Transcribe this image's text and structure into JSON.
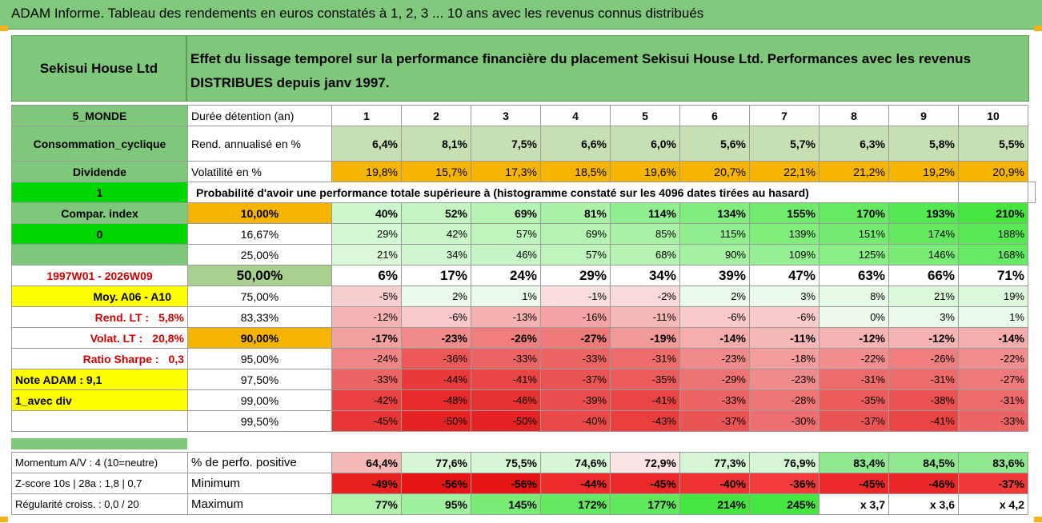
{
  "header": {
    "title": "ADAM Informe. Tableau des rendements en euros constatés à 1, 2, 3 ... 10 ans avec les revenus connus distribués",
    "company": "Sekisui House Ltd",
    "description_line1": "Effet du lissage temporel sur la performance financière du placement Sekisui House Ltd. Performances avec les revenus",
    "description_line2": "DISTRIBUES depuis janv 1997."
  },
  "left_labels": {
    "zone": "5_MONDE",
    "sector": "Consommation_cyclique",
    "dividend": "Dividende",
    "one": "1",
    "compar": "Compar. index",
    "zero": "0",
    "period": "1997W01 - 2026W09",
    "moy": "Moy. A06 - A10",
    "rend_lt_label": "Rend. LT :",
    "rend_lt_value": "5,8%",
    "volat_lt_label": "Volat. LT :",
    "volat_lt_value": "20,8%",
    "sharpe_label": "Ratio Sharpe :",
    "sharpe_value": "0,3",
    "note": "Note ADAM : 9,1",
    "avec_div": "1_avec div"
  },
  "top_rows": {
    "duree_label": "Durée détention (an)",
    "years": [
      "1",
      "2",
      "3",
      "4",
      "5",
      "6",
      "7",
      "8",
      "9",
      "10"
    ],
    "rend_label": "Rend. annualisé en %",
    "rend": [
      "6,4%",
      "8,1%",
      "7,5%",
      "6,6%",
      "6,0%",
      "5,6%",
      "5,7%",
      "6,3%",
      "5,8%",
      "5,5%"
    ],
    "vol_label": "Volatilité en %",
    "vol": [
      "19,8%",
      "15,7%",
      "17,3%",
      "18,5%",
      "19,6%",
      "20,7%",
      "22,1%",
      "21,2%",
      "19,2%",
      "20,9%"
    ],
    "proba_label": "Probabilité d'avoir une performance totale supérieure à (histogramme constaté sur les 4096 dates tirées au hasard)"
  },
  "quantiles": [
    {
      "q": "10,00%",
      "v": [
        "40%",
        "52%",
        "69%",
        "81%",
        "114%",
        "134%",
        "155%",
        "170%",
        "193%",
        "210%"
      ]
    },
    {
      "q": "16,67%",
      "v": [
        "29%",
        "42%",
        "57%",
        "69%",
        "85%",
        "115%",
        "139%",
        "151%",
        "174%",
        "188%"
      ]
    },
    {
      "q": "25,00%",
      "v": [
        "21%",
        "34%",
        "46%",
        "57%",
        "68%",
        "90%",
        "109%",
        "125%",
        "146%",
        "168%"
      ]
    },
    {
      "q": "50,00%",
      "v": [
        "6%",
        "17%",
        "24%",
        "29%",
        "34%",
        "39%",
        "47%",
        "63%",
        "66%",
        "71%"
      ]
    },
    {
      "q": "75,00%",
      "v": [
        "-5%",
        "2%",
        "1%",
        "-1%",
        "-2%",
        "2%",
        "3%",
        "8%",
        "21%",
        "19%"
      ]
    },
    {
      "q": "83,33%",
      "v": [
        "-12%",
        "-6%",
        "-13%",
        "-16%",
        "-11%",
        "-6%",
        "-6%",
        "0%",
        "3%",
        "1%"
      ]
    },
    {
      "q": "90,00%",
      "v": [
        "-17%",
        "-23%",
        "-26%",
        "-27%",
        "-19%",
        "-14%",
        "-11%",
        "-12%",
        "-12%",
        "-14%"
      ]
    },
    {
      "q": "95,00%",
      "v": [
        "-24%",
        "-36%",
        "-33%",
        "-33%",
        "-31%",
        "-23%",
        "-18%",
        "-22%",
        "-26%",
        "-22%"
      ]
    },
    {
      "q": "97,50%",
      "v": [
        "-33%",
        "-44%",
        "-41%",
        "-37%",
        "-35%",
        "-29%",
        "-23%",
        "-31%",
        "-31%",
        "-27%"
      ]
    },
    {
      "q": "99,00%",
      "v": [
        "-42%",
        "-48%",
        "-46%",
        "-39%",
        "-41%",
        "-33%",
        "-28%",
        "-35%",
        "-38%",
        "-31%"
      ]
    },
    {
      "q": "99,50%",
      "v": [
        "-45%",
        "-50%",
        "-50%",
        "-40%",
        "-43%",
        "-37%",
        "-30%",
        "-37%",
        "-41%",
        "-33%"
      ]
    }
  ],
  "bottom": {
    "momentum_label": "Momentum A/V : 4 (10=neutre)",
    "zscore_label": "Z-score 10s | 28a : 1,8 | 0,7",
    "regularite_label": "Régularité croiss. : 0,0 / 20",
    "positive_label": "% de perfo. positive",
    "positive": [
      "64,4%",
      "77,6%",
      "75,5%",
      "74,6%",
      "72,9%",
      "77,3%",
      "76,9%",
      "83,4%",
      "84,5%",
      "83,6%"
    ],
    "min_label": "Minimum",
    "min": [
      "-49%",
      "-56%",
      "-56%",
      "-44%",
      "-45%",
      "-40%",
      "-36%",
      "-45%",
      "-46%",
      "-37%"
    ],
    "max_label": "Maximum",
    "max": [
      "77%",
      "95%",
      "145%",
      "172%",
      "177%",
      "214%",
      "245%",
      "x 3,7",
      "x 3,6",
      "x 4,2"
    ]
  },
  "colors": {
    "header_green": "#7ec77b",
    "bright_green": "#00d600",
    "orange": "#f5b400",
    "yellow": "#ffff00",
    "light_green_cell": "#c6e0b4",
    "red_text": "#d00000"
  }
}
